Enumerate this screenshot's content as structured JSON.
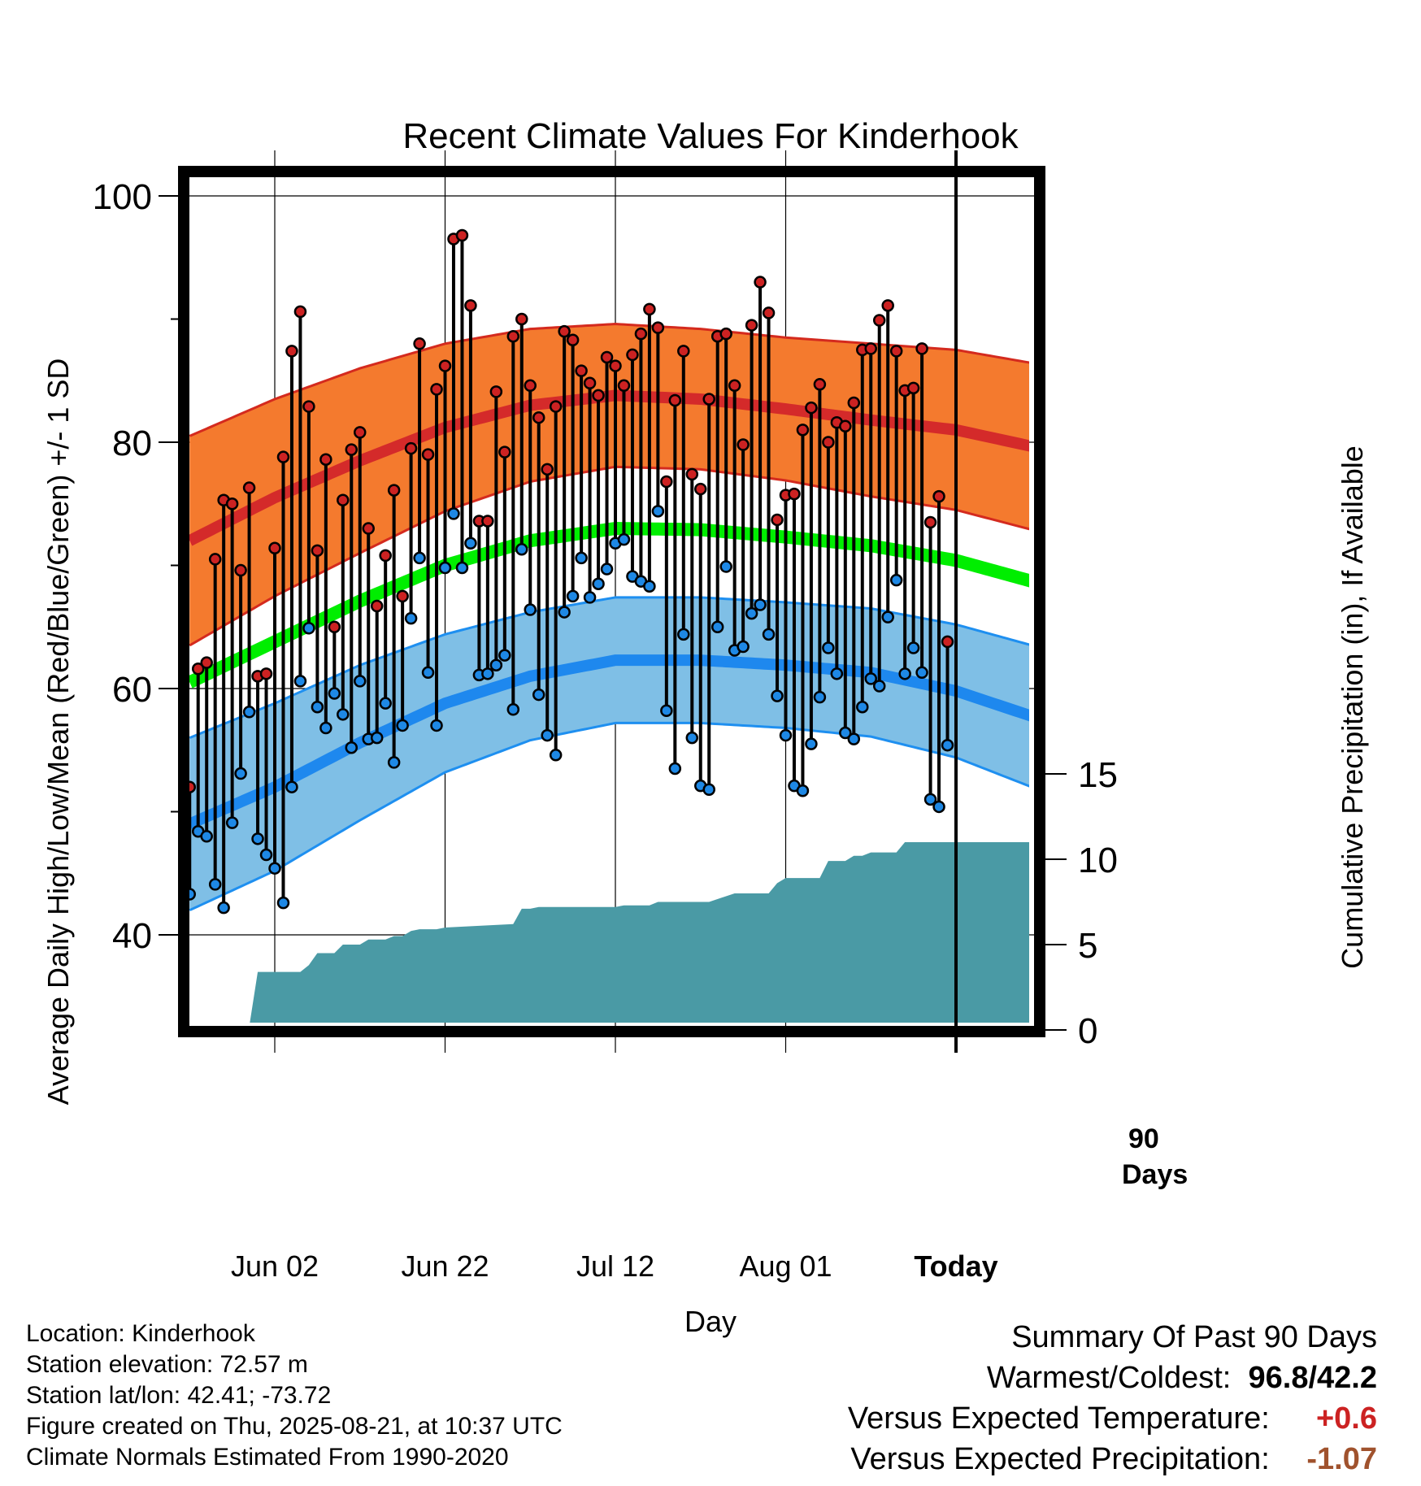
{
  "chart_data": {
    "type": "line",
    "title": "Recent Climate Values For Kinderhook",
    "xlabel": "Day",
    "ylabel": "Average Daily High/Low/Mean (Red/Blue/Green) +/- 1 SD",
    "y2label": "Cumulative Precipitation (in), If Available",
    "ylim": [
      33,
      102
    ],
    "y2lim": [
      0,
      20
    ],
    "y_ticks": [
      "40",
      "60",
      "80",
      "100"
    ],
    "y2_ticks": [
      "0",
      "5",
      "10",
      "15"
    ],
    "x_ticks": [
      "Jun 02",
      "Jun 22",
      "Jul 12",
      "Aug 01",
      "Today"
    ],
    "x_tick_days": [
      10,
      30,
      50,
      70,
      90
    ],
    "x_range_days": [
      0,
      100
    ],
    "today_day": 90,
    "today_label_line1": "90",
    "today_label_line2": "Days",
    "grid": true,
    "normals": {
      "days": [
        0,
        10,
        20,
        30,
        40,
        50,
        60,
        70,
        80,
        90,
        100
      ],
      "high_mean": [
        72.0,
        75.5,
        78.5,
        81.2,
        83.0,
        83.8,
        83.5,
        82.7,
        81.8,
        81.0,
        79.5
      ],
      "high_sd": [
        8.5,
        8.0,
        7.5,
        6.8,
        6.2,
        5.8,
        5.7,
        5.8,
        6.2,
        6.5,
        6.8
      ],
      "low_mean": [
        49.0,
        52.0,
        55.6,
        58.8,
        61.0,
        62.3,
        62.3,
        61.9,
        61.3,
        59.8,
        57.5
      ],
      "low_sd": [
        7.0,
        6.8,
        6.3,
        5.6,
        5.2,
        5.1,
        5.1,
        5.1,
        5.2,
        5.4,
        5.8
      ],
      "mean": [
        60.5,
        63.8,
        67.1,
        70.0,
        72.0,
        73.0,
        72.9,
        72.3,
        71.6,
        70.4,
        68.5
      ]
    },
    "series": [
      {
        "name": "High",
        "color": "#cc2222",
        "values": [
          52.0,
          61.6,
          62.1,
          70.5,
          75.3,
          75.0,
          69.6,
          76.3,
          61.0,
          61.2,
          71.4,
          78.8,
          87.4,
          90.6,
          82.9,
          71.2,
          78.6,
          65.0,
          75.3,
          79.4,
          80.8,
          73.0,
          66.7,
          70.8,
          76.1,
          67.5,
          79.5,
          88.0,
          79.0,
          84.3,
          86.2,
          96.5,
          96.8,
          91.1,
          73.6,
          73.6,
          84.1,
          79.2,
          88.6,
          90.0,
          84.6,
          82.0,
          77.8,
          82.9,
          89.0,
          88.3,
          85.8,
          84.8,
          83.8,
          86.9,
          86.2,
          84.6,
          87.1,
          88.8,
          90.8,
          89.3,
          76.8,
          83.4,
          87.4,
          77.4,
          76.2,
          83.5,
          88.6,
          88.8,
          84.6,
          79.8,
          89.5,
          93.0,
          90.5,
          73.7,
          75.7,
          75.8,
          81.0,
          82.8,
          84.7,
          80.0,
          81.6,
          81.3,
          83.2,
          87.5,
          87.6,
          89.9,
          91.1,
          87.4,
          84.2,
          84.4,
          87.6,
          73.5,
          75.6,
          63.8
        ]
      },
      {
        "name": "Low",
        "color": "#1e88e5",
        "values": [
          43.3,
          48.4,
          48.0,
          44.1,
          42.2,
          49.1,
          53.1,
          58.1,
          47.8,
          46.5,
          45.4,
          42.6,
          52.0,
          60.6,
          64.9,
          58.5,
          56.8,
          59.6,
          57.9,
          55.2,
          60.6,
          55.9,
          56.0,
          58.8,
          54.0,
          57.0,
          65.7,
          70.6,
          61.3,
          57.0,
          69.8,
          74.2,
          69.8,
          71.8,
          61.1,
          61.2,
          61.9,
          62.7,
          58.3,
          71.3,
          66.4,
          59.5,
          56.2,
          54.6,
          66.2,
          67.5,
          70.6,
          67.4,
          68.5,
          69.7,
          71.8,
          72.1,
          69.1,
          68.7,
          68.3,
          74.4,
          58.2,
          53.5,
          64.4,
          56.0,
          52.1,
          51.8,
          65.0,
          69.9,
          63.1,
          63.4,
          66.1,
          66.8,
          64.4,
          59.4,
          56.2,
          52.1,
          51.7,
          55.5,
          59.3,
          63.3,
          61.2,
          56.4,
          55.9,
          58.5,
          60.8,
          60.2,
          65.8,
          68.8,
          61.2,
          63.3,
          61.3,
          51.0,
          50.4,
          55.4
        ]
      }
    ],
    "precipitation": {
      "name": "Cumulative Precipitation",
      "color": "#4a9aa5",
      "days": [
        0,
        6,
        7,
        8,
        13,
        14,
        15,
        17,
        18,
        20,
        21,
        23,
        24,
        25,
        26,
        27,
        28,
        29,
        30,
        38,
        39,
        40,
        41,
        42,
        43,
        48,
        49,
        50,
        51,
        52,
        53,
        54,
        55,
        60,
        61,
        64,
        65,
        66,
        67,
        68,
        69,
        70,
        71,
        72,
        73,
        74,
        75,
        77,
        78,
        79,
        80,
        81,
        82,
        83,
        84,
        87,
        88,
        89,
        90,
        100
      ],
      "values": [
        0.0,
        0.0,
        0.2,
        3.4,
        3.4,
        3.8,
        4.5,
        4.5,
        5.0,
        5.0,
        5.3,
        5.3,
        5.5,
        5.5,
        5.8,
        5.9,
        5.9,
        5.9,
        6.0,
        6.2,
        7.1,
        7.1,
        7.2,
        7.2,
        7.2,
        7.2,
        7.2,
        7.2,
        7.3,
        7.3,
        7.3,
        7.3,
        7.5,
        7.5,
        7.5,
        8.0,
        8.0,
        8.0,
        8.0,
        8.0,
        8.6,
        8.9,
        8.9,
        8.9,
        8.9,
        8.9,
        9.9,
        9.9,
        10.2,
        10.2,
        10.4,
        10.4,
        10.4,
        10.4,
        11.0,
        11.0,
        11.0,
        11.0,
        11.0,
        11.0
      ]
    }
  },
  "info": {
    "location": "Location: Kinderhook",
    "elevation": "Station elevation: 72.57 m",
    "latlon": "Station lat/lon: 42.41; -73.72",
    "created": "Figure created on Thu, 2025-08-21, at 10:37 UTC",
    "normals": "Climate Normals Estimated From 1990-2020"
  },
  "summary": {
    "title": "Summary Of Past 90 Days",
    "warm_cold_label": "Warmest/Coldest:",
    "warmest": "96.8",
    "slash": "/",
    "coldest": "42.2",
    "temp_label": "Versus Expected Temperature:",
    "temp_value": "+0.6",
    "temp_color": "#cc2222",
    "precip_label": "Versus Expected Precipitation:",
    "precip_value": "-1.07",
    "precip_color": "#a0522d"
  }
}
